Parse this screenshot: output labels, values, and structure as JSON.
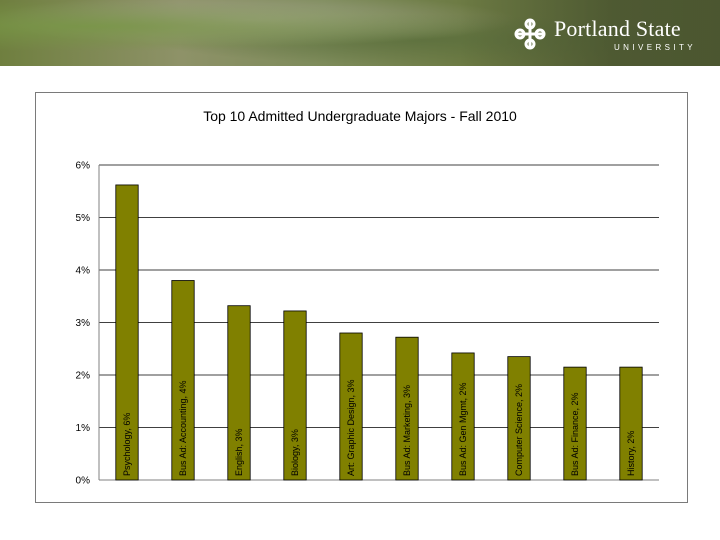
{
  "header": {
    "logo_name": "Portland State",
    "logo_sub": "UNIVERSITY"
  },
  "colors": {
    "bar_fill": "#808000",
    "bar_stroke": "#000000",
    "gridline": "#000000",
    "frame": "#7a7a7a"
  },
  "icons": {
    "logo": "portland-state-logo-icon"
  },
  "chart_data": {
    "type": "bar",
    "title": "Top 10 Admitted Undergraduate Majors - Fall 2010",
    "xlabel": "",
    "ylabel": "",
    "ylim": [
      0,
      6
    ],
    "y_ticks": [
      0,
      1,
      2,
      3,
      4,
      5,
      6
    ],
    "y_tick_labels": [
      "0%",
      "1%",
      "2%",
      "3%",
      "4%",
      "5%",
      "6%"
    ],
    "grid": true,
    "legend": "none",
    "categories": [
      "Psychology",
      "Bus Ad: Accounting",
      "English",
      "Biology",
      "Art: Graphic Design",
      "Bus Ad: Marketing",
      "Bus Ad: Gen Mgmt",
      "Computer Science",
      "Bus Ad: Finance",
      "History"
    ],
    "values": [
      5.62,
      3.8,
      3.32,
      3.22,
      2.8,
      2.72,
      2.42,
      2.35,
      2.15,
      2.15
    ],
    "data_labels": [
      "Psychology, 6%",
      "Bus Ad: Accounting, 4%",
      "English, 3%",
      "Biology, 3%",
      "Art: Graphic Design, 3%",
      "Bus Ad: Marketing, 3%",
      "Bus Ad: Gen Mgmt, 2%",
      "Computer Science, 2%",
      "Bus Ad: Finance, 2%",
      "History, 2%"
    ]
  }
}
